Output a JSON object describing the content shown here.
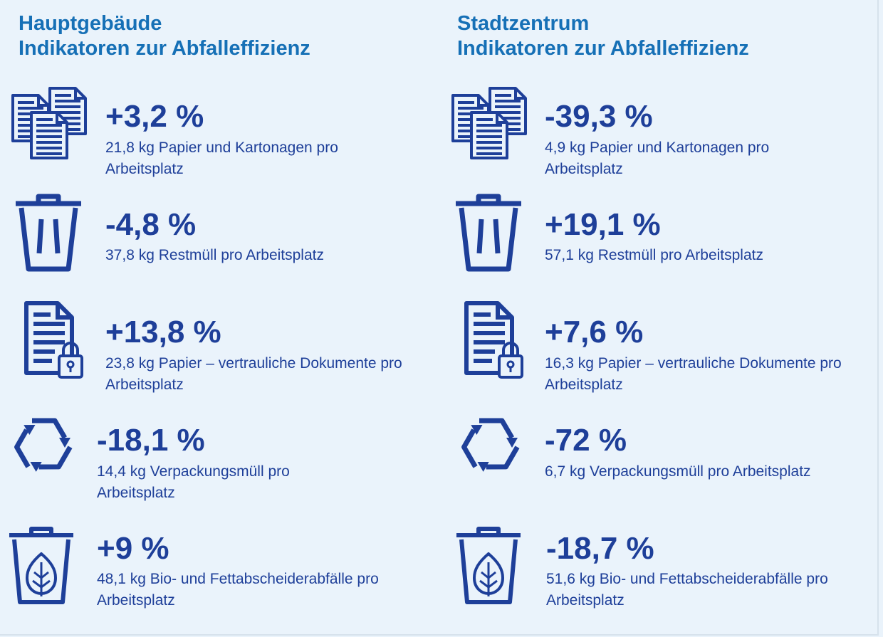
{
  "colors": {
    "title": "#1670b6",
    "text": "#1e3f99",
    "icon": "#1e3f99",
    "background": "#eaf3fb"
  },
  "chart_data": {
    "type": "table",
    "columns": [
      {
        "title_line1": "Hauptgebäude",
        "title_line2": "Indikatoren zur Abfalleffizienz",
        "indicators": [
          {
            "icon": "documents-icon",
            "change": "+3,2 %",
            "value": 21.8,
            "description": "21,8 kg Papier und Kartonagen pro Arbeitsplatz"
          },
          {
            "icon": "trash-bin-icon",
            "change": "-4,8 %",
            "value": 37.8,
            "description": "37,8 kg Restmüll pro Arbeitsplatz"
          },
          {
            "icon": "locked-document-icon",
            "change": "+13,8 %",
            "value": 23.8,
            "description": "23,8 kg Papier – vertrauliche Dokumente pro Arbeitsplatz"
          },
          {
            "icon": "recycle-icon",
            "change": "-18,1 %",
            "value": 14.4,
            "description": "14,4 kg Verpackungsmüll pro Arbeitsplatz"
          },
          {
            "icon": "bio-bin-icon",
            "change": "+9 %",
            "value": 48.1,
            "description": "48,1 kg Bio- und Fettabscheiderabfälle pro Arbeitsplatz"
          }
        ]
      },
      {
        "title_line1": "Stadtzentrum",
        "title_line2": "Indikatoren zur Abfalleffizienz",
        "indicators": [
          {
            "icon": "documents-icon",
            "change": "-39,3 %",
            "value": 4.9,
            "description": "4,9 kg Papier und Kartonagen pro Arbeitsplatz"
          },
          {
            "icon": "trash-bin-icon",
            "change": "+19,1 %",
            "value": 57.1,
            "description": "57,1 kg Restmüll pro Arbeitsplatz"
          },
          {
            "icon": "locked-document-icon",
            "change": "+7,6 %",
            "value": 16.3,
            "description": "16,3 kg Papier – vertrauliche Dokumente pro Arbeitsplatz"
          },
          {
            "icon": "recycle-icon",
            "change": "-72 %",
            "value": 6.7,
            "description": "6,7 kg Verpackungsmüll pro Arbeitsplatz"
          },
          {
            "icon": "bio-bin-icon",
            "change": "-18,7 %",
            "value": 51.6,
            "description": "51,6 kg Bio- und Fettabscheiderabfälle pro Arbeitsplatz"
          }
        ]
      }
    ]
  }
}
